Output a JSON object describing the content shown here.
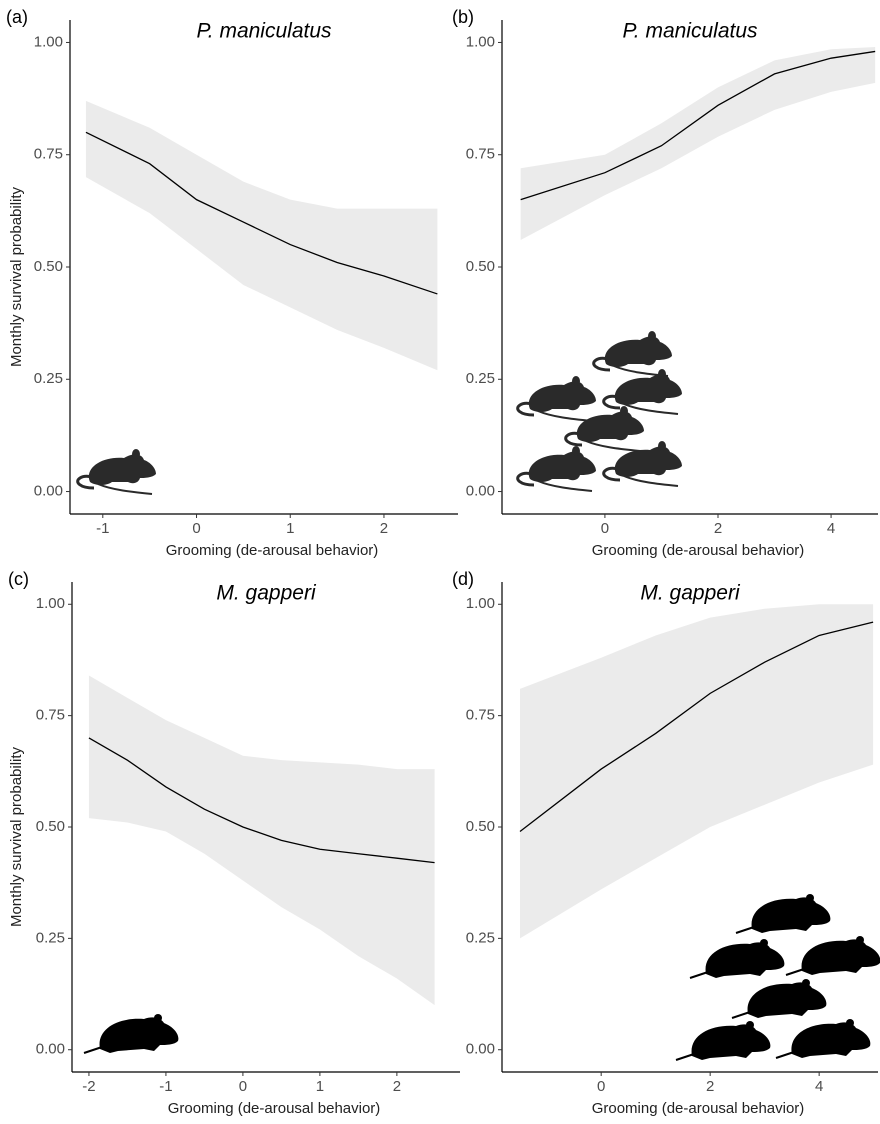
{
  "chart_data": [
    {
      "type": "line",
      "panel": "(a)",
      "title": "P. maniculatus",
      "xlabel": "Grooming (de-arousal behavior)",
      "ylabel": "Monthly survival probability",
      "x": [
        -1.18,
        -0.5,
        0,
        0.5,
        1,
        1.5,
        2,
        2.57
      ],
      "values": [
        0.8,
        0.73,
        0.65,
        0.6,
        0.55,
        0.51,
        0.48,
        0.44
      ],
      "upper": [
        0.87,
        0.81,
        0.75,
        0.69,
        0.65,
        0.63,
        0.63,
        0.63
      ],
      "lower": [
        0.7,
        0.62,
        0.54,
        0.46,
        0.41,
        0.36,
        0.32,
        0.27
      ],
      "color": "#000000",
      "band_color": "#ebebeb",
      "xlim": [
        -1.35,
        2.79
      ],
      "xticks": [
        -1,
        0,
        1,
        2
      ],
      "ylim": [
        -0.05,
        1.05
      ],
      "yticks": [
        {
          "value": 0,
          "label": "0.00"
        },
        {
          "value": 0.25,
          "label": "0.25"
        },
        {
          "value": 0.5,
          "label": "0.50"
        },
        {
          "value": 0.75,
          "label": "0.75"
        },
        {
          "value": 1,
          "label": "1.00"
        }
      ]
    },
    {
      "type": "line",
      "panel": "(b)",
      "title": "P. maniculatus",
      "xlabel": "Grooming (de-arousal behavior)",
      "x": [
        -1.49,
        0,
        1,
        2,
        3,
        4,
        4.78
      ],
      "values": [
        0.65,
        0.71,
        0.77,
        0.86,
        0.93,
        0.965,
        0.98
      ],
      "upper": [
        0.72,
        0.75,
        0.82,
        0.9,
        0.96,
        0.985,
        0.99
      ],
      "lower": [
        0.56,
        0.66,
        0.72,
        0.79,
        0.85,
        0.89,
        0.91
      ],
      "color": "#000000",
      "band_color": "#ebebeb",
      "xlim": [
        -1.82,
        4.83
      ],
      "xticks": [
        0,
        2,
        4
      ],
      "ylim": [
        -0.05,
        1.05
      ],
      "yticks": [
        {
          "value": 0,
          "label": "0.00"
        },
        {
          "value": 0.25,
          "label": "0.25"
        },
        {
          "value": 0.5,
          "label": "0.50"
        },
        {
          "value": 0.75,
          "label": "0.75"
        },
        {
          "value": 1,
          "label": "1.00"
        }
      ]
    },
    {
      "type": "line",
      "panel": "(c)",
      "title": "M. gapperi",
      "xlabel": "Grooming (de-arousal behavior)",
      "ylabel": "Monthly survival probability",
      "x": [
        -2,
        -1.5,
        -1,
        -0.5,
        0,
        0.5,
        1,
        1.5,
        2,
        2.49
      ],
      "values": [
        0.7,
        0.65,
        0.59,
        0.54,
        0.5,
        0.47,
        0.45,
        0.44,
        0.43,
        0.42
      ],
      "upper": [
        0.84,
        0.79,
        0.74,
        0.7,
        0.66,
        0.65,
        0.645,
        0.64,
        0.63,
        0.63
      ],
      "lower": [
        0.52,
        0.51,
        0.49,
        0.44,
        0.38,
        0.32,
        0.27,
        0.21,
        0.16,
        0.1
      ],
      "color": "#000000",
      "band_color": "#ebebeb",
      "xlim": [
        -2.22,
        2.82
      ],
      "xticks": [
        -2,
        -1,
        0,
        1,
        2
      ],
      "ylim": [
        -0.05,
        1.05
      ],
      "yticks": [
        {
          "value": 0,
          "label": "0.00"
        },
        {
          "value": 0.25,
          "label": "0.25"
        },
        {
          "value": 0.5,
          "label": "0.50"
        },
        {
          "value": 0.75,
          "label": "0.75"
        },
        {
          "value": 1,
          "label": "1.00"
        }
      ]
    },
    {
      "type": "line",
      "panel": "(d)",
      "title": "M. gapperi",
      "xlabel": "Grooming (de-arousal behavior)",
      "x": [
        -1.49,
        0,
        1,
        2,
        3,
        4,
        4.99
      ],
      "values": [
        0.49,
        0.63,
        0.71,
        0.8,
        0.87,
        0.93,
        0.96
      ],
      "upper": [
        0.81,
        0.88,
        0.93,
        0.97,
        0.99,
        1.0,
        1.0
      ],
      "lower": [
        0.25,
        0.36,
        0.43,
        0.5,
        0.55,
        0.6,
        0.64
      ],
      "color": "#000000",
      "band_color": "#ebebeb",
      "xlim": [
        -1.82,
        5.08
      ],
      "xticks": [
        0,
        2,
        4
      ],
      "ylim": [
        -0.05,
        1.05
      ],
      "yticks": [
        {
          "value": 0,
          "label": "0.00"
        },
        {
          "value": 0.25,
          "label": "0.25"
        },
        {
          "value": 0.5,
          "label": "0.50"
        },
        {
          "value": 0.75,
          "label": "0.75"
        },
        {
          "value": 1,
          "label": "1.00"
        }
      ]
    }
  ]
}
